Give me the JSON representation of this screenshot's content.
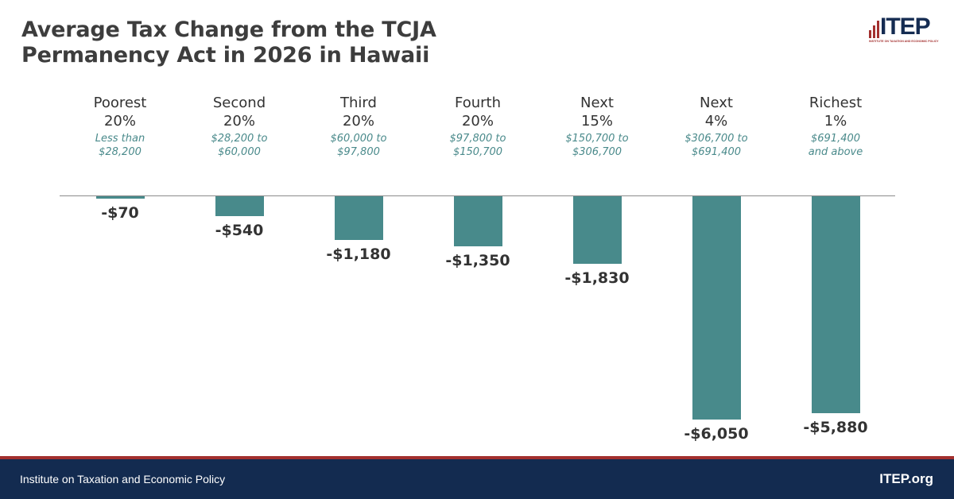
{
  "chart_data": {
    "type": "bar",
    "title": "Average Tax Change from the TCJA Permanency Act in 2026 in Hawaii",
    "categories": [
      {
        "name_line1": "Poorest",
        "name_line2": "20%",
        "range_line1": "Less than",
        "range_line2": "$28,200"
      },
      {
        "name_line1": "Second",
        "name_line2": "20%",
        "range_line1": "$28,200 to",
        "range_line2": "$60,000"
      },
      {
        "name_line1": "Third",
        "name_line2": "20%",
        "range_line1": "$60,000 to",
        "range_line2": "$97,800"
      },
      {
        "name_line1": "Fourth",
        "name_line2": "20%",
        "range_line1": "$97,800 to",
        "range_line2": "$150,700"
      },
      {
        "name_line1": "Next",
        "name_line2": "15%",
        "range_line1": "$150,700 to",
        "range_line2": "$306,700"
      },
      {
        "name_line1": "Next",
        "name_line2": "4%",
        "range_line1": "$306,700 to",
        "range_line2": "$691,400"
      },
      {
        "name_line1": "Richest",
        "name_line2": "1%",
        "range_line1": "$691,400",
        "range_line2": "and above"
      }
    ],
    "values": [
      -70,
      -540,
      -1180,
      -1350,
      -1830,
      -6050,
      -5880
    ],
    "value_labels": [
      "-$70",
      "-$540",
      "-$1,180",
      "-$1,350",
      "-$1,830",
      "-$6,050",
      "-$5,880"
    ],
    "xlabel": "",
    "ylabel": "",
    "ylim": [
      -6050,
      0
    ],
    "grid": false,
    "legend": "none",
    "bar_color": "#488a8b"
  },
  "header": {
    "title_line1": "Average Tax Change from the TCJA",
    "title_line2": "Permanency Act in 2026 in Hawaii"
  },
  "logo": {
    "wordmark": "ITEP",
    "tagline": "INSTITUTE ON TAXATION AND ECONOMIC POLICY"
  },
  "footer": {
    "organization": "Institute on Taxation and Economic Policy",
    "website": "ITEP.org"
  },
  "colors": {
    "accent_red": "#a3302f",
    "navy": "#132b50",
    "teal": "#488a8b"
  }
}
